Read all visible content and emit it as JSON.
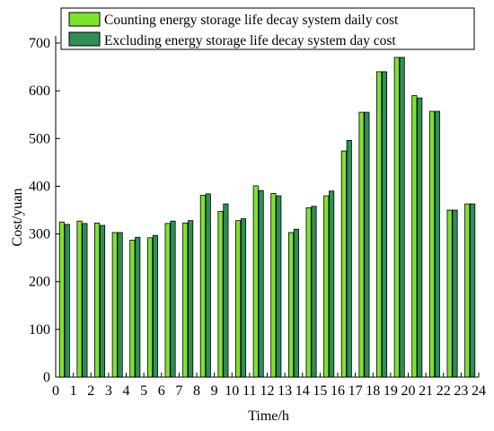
{
  "chart_data": {
    "type": "bar",
    "title": "",
    "xlabel": "Time/h",
    "ylabel": "Cost/yuan",
    "ylim": [
      0,
      700
    ],
    "yticks": [
      0,
      100,
      200,
      300,
      400,
      500,
      600,
      700
    ],
    "x_tick_labels": [
      "0",
      "1",
      "2",
      "3",
      "4",
      "5",
      "6",
      "7",
      "8",
      "9",
      "10",
      "11",
      "12",
      "13",
      "14",
      "15",
      "16",
      "17",
      "18",
      "19",
      "20",
      "21",
      "22",
      "23",
      "24"
    ],
    "grid": false,
    "legend_position": "top",
    "series": [
      {
        "name": "Counting energy storage life decay system daily cost",
        "color": "#7ee32d",
        "values": [
          325,
          327,
          323,
          303,
          287,
          292,
          322,
          323,
          381,
          347,
          328,
          401,
          385,
          303,
          355,
          380,
          474,
          555,
          640,
          670,
          590,
          557,
          350,
          363
        ]
      },
      {
        "name": "Excluding energy storage life decay system day cost",
        "color": "#2f8f55",
        "values": [
          320,
          322,
          318,
          303,
          293,
          297,
          327,
          328,
          384,
          363,
          332,
          391,
          380,
          310,
          358,
          390,
          496,
          555,
          640,
          670,
          585,
          557,
          350,
          363
        ]
      }
    ]
  }
}
